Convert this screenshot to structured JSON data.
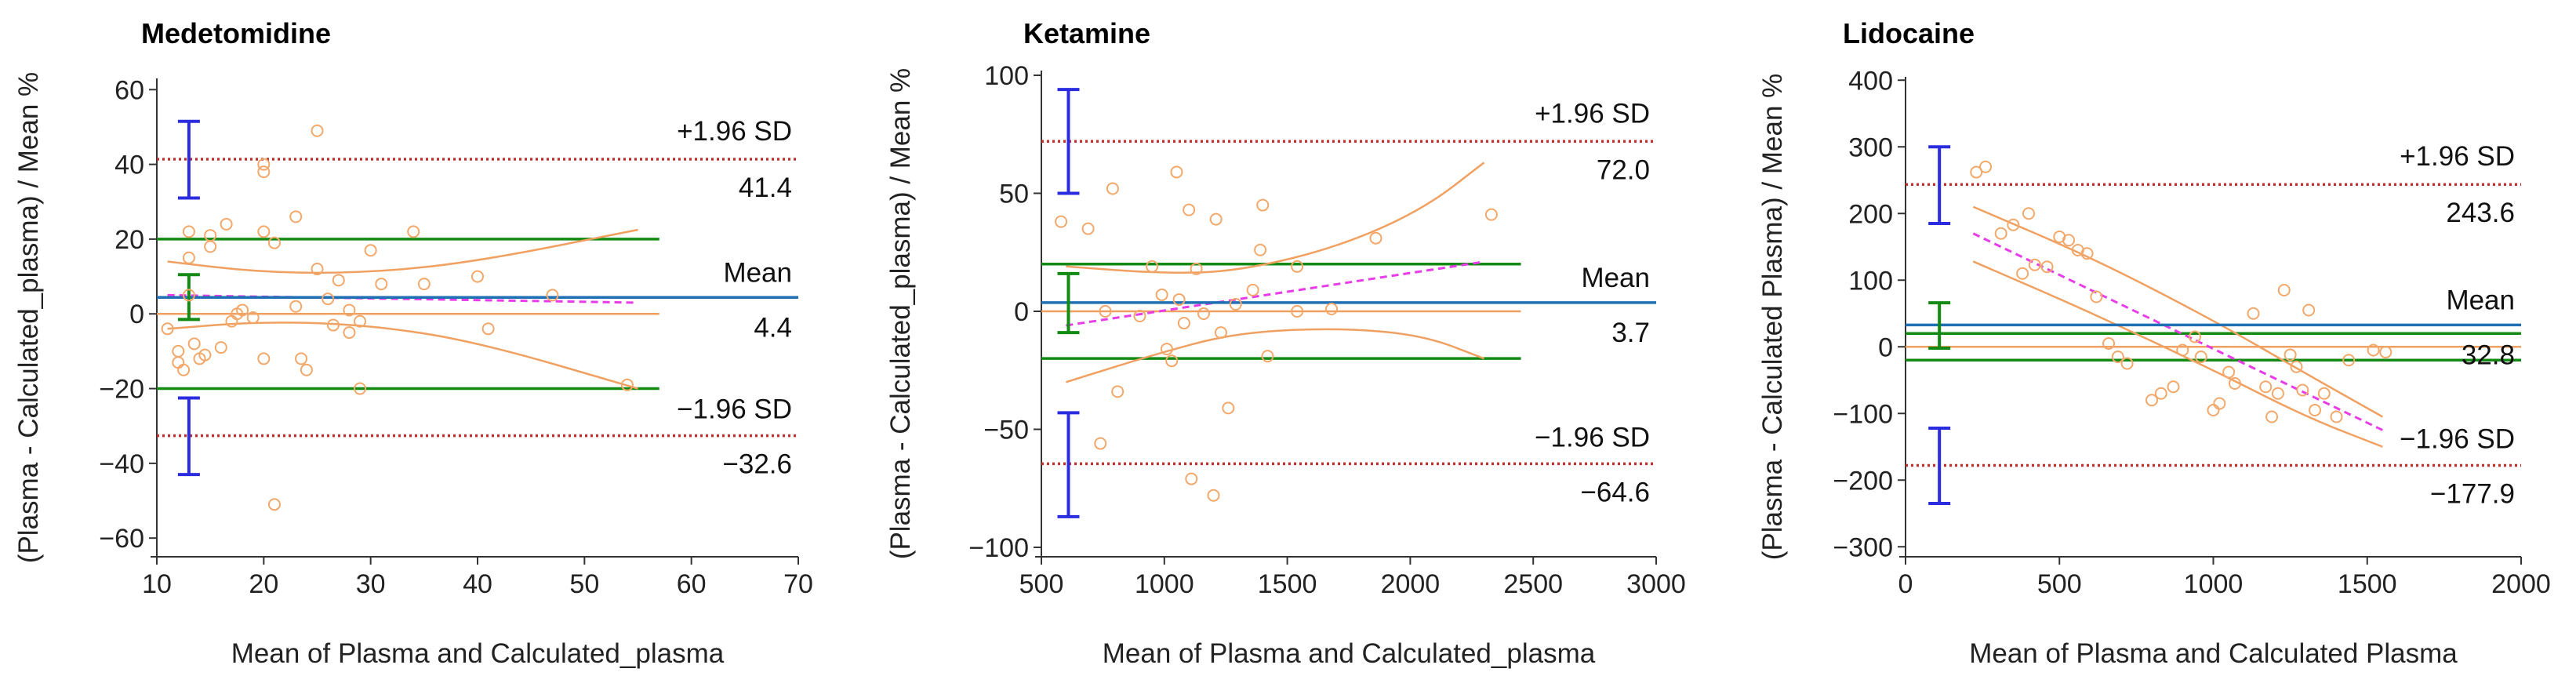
{
  "chart_data": [
    {
      "type": "scatter",
      "title": "Medetomidine",
      "xlabel": "Mean of Plasma and Calculated_plasma",
      "ylabel": "(Plasma - Calculated_plasma) / Mean %",
      "xlim": [
        10,
        70
      ],
      "ylim": [
        -65,
        63
      ],
      "xticks": [
        10,
        20,
        30,
        40,
        50,
        60,
        70
      ],
      "yticks": [
        -60,
        -40,
        -20,
        0,
        20,
        40,
        60
      ],
      "x_line_end": 57,
      "mean": 4.4,
      "upper_loa": 41.4,
      "lower_loa": -32.6,
      "mean_label": "Mean",
      "upper_label": "+1.96 SD",
      "lower_label": "−1.96 SD",
      "mean_value_text": "4.4",
      "upper_value_text": "41.4",
      "lower_value_text": "−32.6",
      "limits_of_agreement": [
        20,
        -20
      ],
      "ci_x": 13,
      "ci_upper": [
        31,
        51.5
      ],
      "ci_mean": [
        -1.5,
        10.5
      ],
      "ci_lower": [
        -43,
        -22.5
      ],
      "regression": {
        "x1": 11,
        "y1": 5,
        "x2": 55,
        "y2": 3
      },
      "ci_band_upper": [
        [
          11,
          14
        ],
        [
          20,
          11
        ],
        [
          30,
          11
        ],
        [
          40,
          14
        ],
        [
          55,
          22.5
        ]
      ],
      "ci_band_lower": [
        [
          11,
          -4
        ],
        [
          20,
          -2
        ],
        [
          30,
          -3
        ],
        [
          40,
          -7.5
        ],
        [
          55,
          -20
        ]
      ],
      "points": [
        [
          11,
          -4
        ],
        [
          12,
          -13
        ],
        [
          12,
          -10
        ],
        [
          12.5,
          -15
        ],
        [
          13,
          22
        ],
        [
          13,
          15
        ],
        [
          13,
          5
        ],
        [
          13.5,
          -8
        ],
        [
          14,
          -12
        ],
        [
          14.5,
          -11
        ],
        [
          15,
          18
        ],
        [
          15,
          21
        ],
        [
          16,
          -9
        ],
        [
          16.5,
          24
        ],
        [
          17,
          -2
        ],
        [
          17.5,
          0
        ],
        [
          18,
          1
        ],
        [
          19,
          -1
        ],
        [
          20,
          38
        ],
        [
          20,
          40
        ],
        [
          20,
          22
        ],
        [
          20,
          -12
        ],
        [
          21,
          19
        ],
        [
          21,
          -51
        ],
        [
          23,
          26
        ],
        [
          23,
          2
        ],
        [
          23.5,
          -12
        ],
        [
          24,
          -15
        ],
        [
          25,
          49
        ],
        [
          25,
          12
        ],
        [
          26,
          4
        ],
        [
          26.5,
          -3
        ],
        [
          27,
          9
        ],
        [
          28,
          1
        ],
        [
          28,
          -5
        ],
        [
          29,
          -20
        ],
        [
          29,
          -2
        ],
        [
          30,
          17
        ],
        [
          31,
          8
        ],
        [
          34,
          22
        ],
        [
          35,
          8
        ],
        [
          40,
          10
        ],
        [
          41,
          -4
        ],
        [
          47,
          5
        ],
        [
          54,
          -19
        ]
      ]
    },
    {
      "type": "scatter",
      "title": "Ketamine",
      "xlabel": "Mean of Plasma and Calculated_plasma",
      "ylabel": "(Plasma - Calculated_plasma) / Mean %",
      "xlim": [
        500,
        3000
      ],
      "ylim": [
        -104,
        102
      ],
      "xticks": [
        500,
        1000,
        1500,
        2000,
        2500,
        3000
      ],
      "yticks": [
        -100,
        -50,
        0,
        50,
        100
      ],
      "x_line_end": 2450,
      "mean": 3.7,
      "upper_loa": 72.0,
      "lower_loa": -64.6,
      "mean_label": "Mean",
      "upper_label": "+1.96 SD",
      "lower_label": "−1.96 SD",
      "mean_value_text": "3.7",
      "upper_value_text": "72.0",
      "lower_value_text": "−64.6",
      "limits_of_agreement": [
        20,
        -20
      ],
      "ci_x": 610,
      "ci_upper": [
        50,
        94
      ],
      "ci_mean": [
        -9,
        16
      ],
      "ci_lower": [
        -87,
        -43
      ],
      "regression": {
        "x1": 600,
        "y1": -6,
        "x2": 2300,
        "y2": 21
      },
      "ci_band_upper": [
        [
          600,
          19
        ],
        [
          1000,
          16
        ],
        [
          1300,
          17
        ],
        [
          1700,
          27
        ],
        [
          2050,
          43
        ],
        [
          2300,
          63
        ]
      ],
      "ci_band_lower": [
        [
          600,
          -30
        ],
        [
          1000,
          -17
        ],
        [
          1300,
          -9
        ],
        [
          1700,
          -7
        ],
        [
          2050,
          -10
        ],
        [
          2300,
          -20
        ]
      ],
      "points": [
        [
          580,
          38
        ],
        [
          690,
          35
        ],
        [
          740,
          -56
        ],
        [
          760,
          0
        ],
        [
          790,
          52
        ],
        [
          810,
          -34
        ],
        [
          900,
          -2
        ],
        [
          950,
          19
        ],
        [
          990,
          7
        ],
        [
          1010,
          -16
        ],
        [
          1030,
          -21
        ],
        [
          1050,
          59
        ],
        [
          1060,
          5
        ],
        [
          1080,
          -5
        ],
        [
          1100,
          43
        ],
        [
          1110,
          -71
        ],
        [
          1130,
          18
        ],
        [
          1160,
          -1
        ],
        [
          1200,
          -78
        ],
        [
          1210,
          39
        ],
        [
          1230,
          -9
        ],
        [
          1260,
          -41
        ],
        [
          1290,
          3
        ],
        [
          1360,
          9
        ],
        [
          1390,
          26
        ],
        [
          1400,
          45
        ],
        [
          1420,
          -19
        ],
        [
          1540,
          0
        ],
        [
          1540,
          19
        ],
        [
          1680,
          1
        ],
        [
          1860,
          31
        ],
        [
          2330,
          41
        ]
      ]
    },
    {
      "type": "scatter",
      "title": "Lidocaine",
      "xlabel": "Mean of Plasma and Calculated Plasma",
      "ylabel": "(Plasma - Calculated Plasma) / Mean %",
      "xlim": [
        0,
        2000
      ],
      "ylim": [
        -315,
        405
      ],
      "xticks": [
        0,
        500,
        1000,
        1500,
        2000
      ],
      "yticks": [
        -300,
        -200,
        -100,
        0,
        100,
        200,
        300,
        400
      ],
      "x_line_end": 2000,
      "mean": 32.8,
      "upper_loa": 243.6,
      "lower_loa": -177.9,
      "mean_label": "Mean",
      "upper_label": "+1.96 SD",
      "lower_label": "−1.96 SD",
      "mean_value_text": "32.8",
      "upper_value_text": "243.6",
      "lower_value_text": "−177.9",
      "limits_of_agreement": [
        20,
        -20
      ],
      "ci_x": 110,
      "ci_upper": [
        185,
        300
      ],
      "ci_mean": [
        -2,
        66
      ],
      "ci_lower": [
        -235,
        -122
      ],
      "regression": {
        "x1": 220,
        "y1": 170,
        "x2": 1550,
        "y2": -125
      },
      "ci_band_upper": [
        [
          220,
          210
        ],
        [
          600,
          135
        ],
        [
          1000,
          40
        ],
        [
          1300,
          -40
        ],
        [
          1550,
          -105
        ]
      ],
      "ci_band_lower": [
        [
          220,
          128
        ],
        [
          600,
          52
        ],
        [
          1000,
          -35
        ],
        [
          1300,
          -105
        ],
        [
          1550,
          -150
        ]
      ],
      "points": [
        [
          230,
          262
        ],
        [
          260,
          270
        ],
        [
          310,
          170
        ],
        [
          350,
          183
        ],
        [
          380,
          110
        ],
        [
          400,
          200
        ],
        [
          420,
          123
        ],
        [
          460,
          120
        ],
        [
          500,
          165
        ],
        [
          530,
          160
        ],
        [
          560,
          145
        ],
        [
          590,
          140
        ],
        [
          620,
          75
        ],
        [
          660,
          5
        ],
        [
          690,
          -15
        ],
        [
          720,
          -25
        ],
        [
          800,
          -80
        ],
        [
          830,
          -70
        ],
        [
          870,
          -60
        ],
        [
          900,
          -5
        ],
        [
          940,
          15
        ],
        [
          960,
          -15
        ],
        [
          1000,
          -95
        ],
        [
          1020,
          -85
        ],
        [
          1050,
          -38
        ],
        [
          1070,
          -55
        ],
        [
          1130,
          50
        ],
        [
          1170,
          -60
        ],
        [
          1190,
          -105
        ],
        [
          1210,
          -70
        ],
        [
          1230,
          85
        ],
        [
          1250,
          -12
        ],
        [
          1270,
          -30
        ],
        [
          1290,
          -65
        ],
        [
          1310,
          55
        ],
        [
          1330,
          -95
        ],
        [
          1360,
          -70
        ],
        [
          1400,
          -105
        ],
        [
          1440,
          -20
        ],
        [
          1520,
          -5
        ],
        [
          1560,
          -8
        ]
      ]
    }
  ]
}
